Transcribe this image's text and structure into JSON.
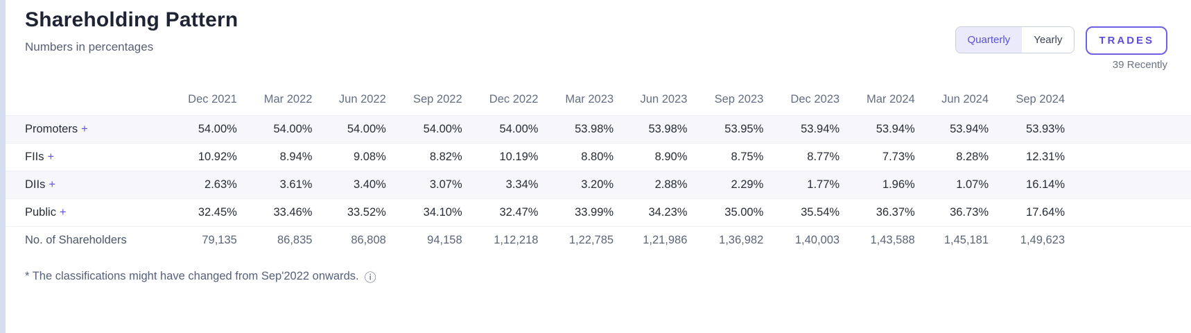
{
  "header": {
    "title": "Shareholding Pattern",
    "subtitle": "Numbers in percentages",
    "toggle": {
      "quarterly": "Quarterly",
      "yearly": "Yearly"
    },
    "trades_label": "TRADES",
    "trades_sub": "39 Recently"
  },
  "accent_color": "#5b4ed8",
  "table": {
    "columns": [
      "Dec 2021",
      "Mar 2022",
      "Jun 2022",
      "Sep 2022",
      "Dec 2022",
      "Mar 2023",
      "Jun 2023",
      "Sep 2023",
      "Dec 2023",
      "Mar 2024",
      "Jun 2024",
      "Sep 2024"
    ],
    "rows": [
      {
        "label": "Promoters",
        "expandable": true,
        "muted": false,
        "values": [
          "54.00%",
          "54.00%",
          "54.00%",
          "54.00%",
          "54.00%",
          "53.98%",
          "53.98%",
          "53.95%",
          "53.94%",
          "53.94%",
          "53.94%",
          "53.93%"
        ]
      },
      {
        "label": "FIIs",
        "expandable": true,
        "muted": false,
        "values": [
          "10.92%",
          "8.94%",
          "9.08%",
          "8.82%",
          "10.19%",
          "8.80%",
          "8.90%",
          "8.75%",
          "8.77%",
          "7.73%",
          "8.28%",
          "12.31%"
        ]
      },
      {
        "label": "DIIs",
        "expandable": true,
        "muted": false,
        "values": [
          "2.63%",
          "3.61%",
          "3.40%",
          "3.07%",
          "3.34%",
          "3.20%",
          "2.88%",
          "2.29%",
          "1.77%",
          "1.96%",
          "1.07%",
          "16.14%"
        ]
      },
      {
        "label": "Public",
        "expandable": true,
        "muted": false,
        "values": [
          "32.45%",
          "33.46%",
          "33.52%",
          "34.10%",
          "32.47%",
          "33.99%",
          "34.23%",
          "35.00%",
          "35.54%",
          "36.37%",
          "36.73%",
          "17.64%"
        ]
      },
      {
        "label": "No. of Shareholders",
        "expandable": false,
        "muted": true,
        "values": [
          "79,135",
          "86,835",
          "86,808",
          "94,158",
          "1,12,218",
          "1,22,785",
          "1,21,986",
          "1,36,982",
          "1,40,003",
          "1,43,588",
          "1,45,181",
          "1,49,623"
        ]
      }
    ],
    "expand_glyph": "+"
  },
  "footnote": {
    "text": "* The classifications might have changed from Sep'2022 onwards.",
    "info_glyph": "ⓘ"
  }
}
